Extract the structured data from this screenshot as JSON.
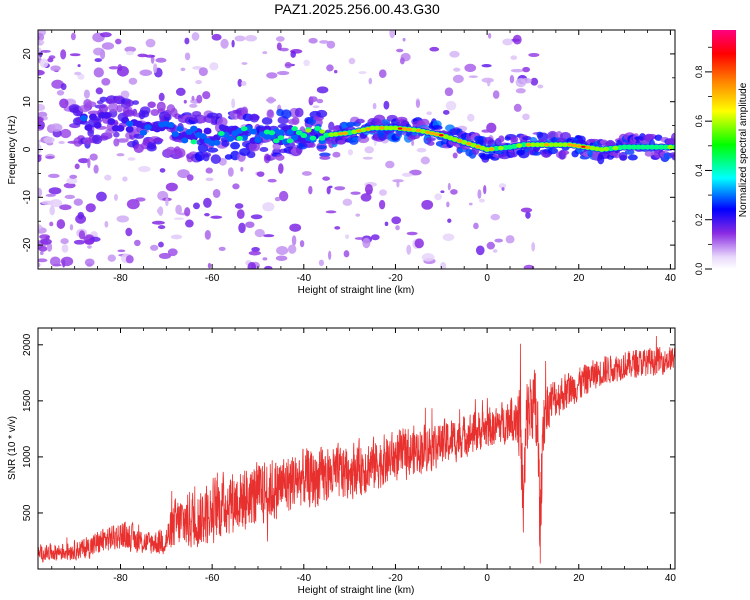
{
  "page": {
    "title": "PAZ1.2025.256.00.43.G30"
  },
  "colors": {
    "snr_line": "#e8312f",
    "axis": "#000000",
    "spectrogram_low": "#c9a6f5",
    "spectrogram_high": "#ff0000"
  },
  "chart_data": [
    {
      "type": "heatmap",
      "name": "spectrogram",
      "title": "PAZ1.2025.256.00.43.G30",
      "xlabel": "Height of straight line (km)",
      "ylabel": "Frequency (Hz)",
      "xlim": [
        -98,
        41
      ],
      "ylim": [
        -25,
        25
      ],
      "x_ticks": [
        -80,
        -60,
        -40,
        -20,
        0,
        20,
        40
      ],
      "y_ticks": [
        -20,
        -10,
        0,
        10,
        20
      ],
      "grid": false,
      "colorbar": {
        "label": "Normalized spectral amplitude",
        "range": [
          0,
          0.97
        ],
        "ticks": [
          0.0,
          0.2,
          0.4,
          0.6,
          0.8
        ],
        "colormap": "rainbow (white-violet-blue-cyan-green-yellow-red-magenta)"
      },
      "dominant_frequency_ridge": {
        "x": [
          -82,
          -75,
          -70,
          -65,
          -60,
          -55,
          -50,
          -45,
          -40,
          -35,
          -30,
          -25,
          -20,
          -15,
          -10,
          -5,
          0,
          5,
          8,
          12,
          18,
          25,
          30,
          35,
          41
        ],
        "y": [
          6,
          5,
          4,
          3,
          2.5,
          3.5,
          3,
          3,
          3,
          3,
          3.5,
          4.5,
          4.5,
          4,
          3,
          1.5,
          0,
          0.5,
          1,
          1,
          1,
          0,
          0.5,
          0.5,
          0.5
        ],
        "amplitude": [
          0.3,
          0.3,
          0.35,
          0.4,
          0.45,
          0.5,
          0.5,
          0.55,
          0.55,
          0.65,
          0.75,
          0.85,
          0.85,
          0.85,
          0.85,
          0.8,
          0.85,
          0.5,
          0.75,
          0.8,
          0.85,
          0.8,
          0.6,
          0.6,
          0.6
        ]
      }
    },
    {
      "type": "line",
      "name": "snr",
      "xlabel": "Height of straight line (km)",
      "ylabel": "SNR (10 * v/v)",
      "xlim": [
        -98,
        41
      ],
      "ylim": [
        0,
        2150
      ],
      "x_ticks": [
        -80,
        -60,
        -40,
        -20,
        0,
        20,
        40
      ],
      "y_ticks": [
        500,
        1000,
        1500,
        2000
      ],
      "grid": false,
      "series": [
        {
          "x": [
            -98,
            -95,
            -92,
            -90,
            -88,
            -86,
            -84,
            -82,
            -80,
            -78,
            -76,
            -74,
            -72,
            -70,
            -68,
            -66,
            -64,
            -62,
            -60,
            -58,
            -56,
            -54,
            -52,
            -50,
            -48,
            -46,
            -44,
            -42,
            -40,
            -38,
            -36,
            -34,
            -32,
            -30,
            -28,
            -26,
            -24,
            -22,
            -20,
            -18,
            -16,
            -14,
            -12,
            -10,
            -8,
            -6,
            -4,
            -2,
            0,
            2,
            4,
            6,
            7,
            8,
            9,
            10,
            11,
            12,
            13,
            14,
            16,
            18,
            20,
            22,
            24,
            26,
            28,
            30,
            32,
            34,
            36,
            38,
            40,
            41
          ],
          "y": [
            130,
            150,
            160,
            170,
            180,
            210,
            250,
            280,
            300,
            290,
            250,
            230,
            240,
            260,
            400,
            430,
            450,
            470,
            520,
            560,
            600,
            620,
            640,
            660,
            690,
            720,
            760,
            790,
            810,
            800,
            820,
            840,
            860,
            880,
            900,
            920,
            940,
            970,
            1000,
            1030,
            1050,
            1080,
            1100,
            1120,
            1140,
            1170,
            1200,
            1230,
            1250,
            1270,
            1320,
            1380,
            1350,
            1200,
            1400,
            1500,
            1250,
            1300,
            1450,
            1500,
            1550,
            1600,
            1650,
            1700,
            1750,
            1780,
            1800,
            1820,
            1830,
            1840,
            1850,
            1860,
            1870,
            1880
          ],
          "noise_amplitude": [
            70,
            80,
            90,
            90,
            100,
            110,
            120,
            120,
            130,
            130,
            120,
            110,
            120,
            150,
            250,
            270,
            280,
            280,
            300,
            300,
            300,
            300,
            300,
            300,
            300,
            290,
            280,
            280,
            270,
            270,
            260,
            260,
            260,
            250,
            250,
            250,
            240,
            240,
            230,
            230,
            230,
            220,
            220,
            210,
            210,
            200,
            200,
            190,
            190,
            190,
            200,
            260,
            350,
            450,
            400,
            350,
            500,
            350,
            250,
            200,
            180,
            170,
            160,
            150,
            140,
            140,
            130,
            130,
            130,
            130,
            130,
            120,
            120,
            120
          ]
        }
      ]
    }
  ]
}
